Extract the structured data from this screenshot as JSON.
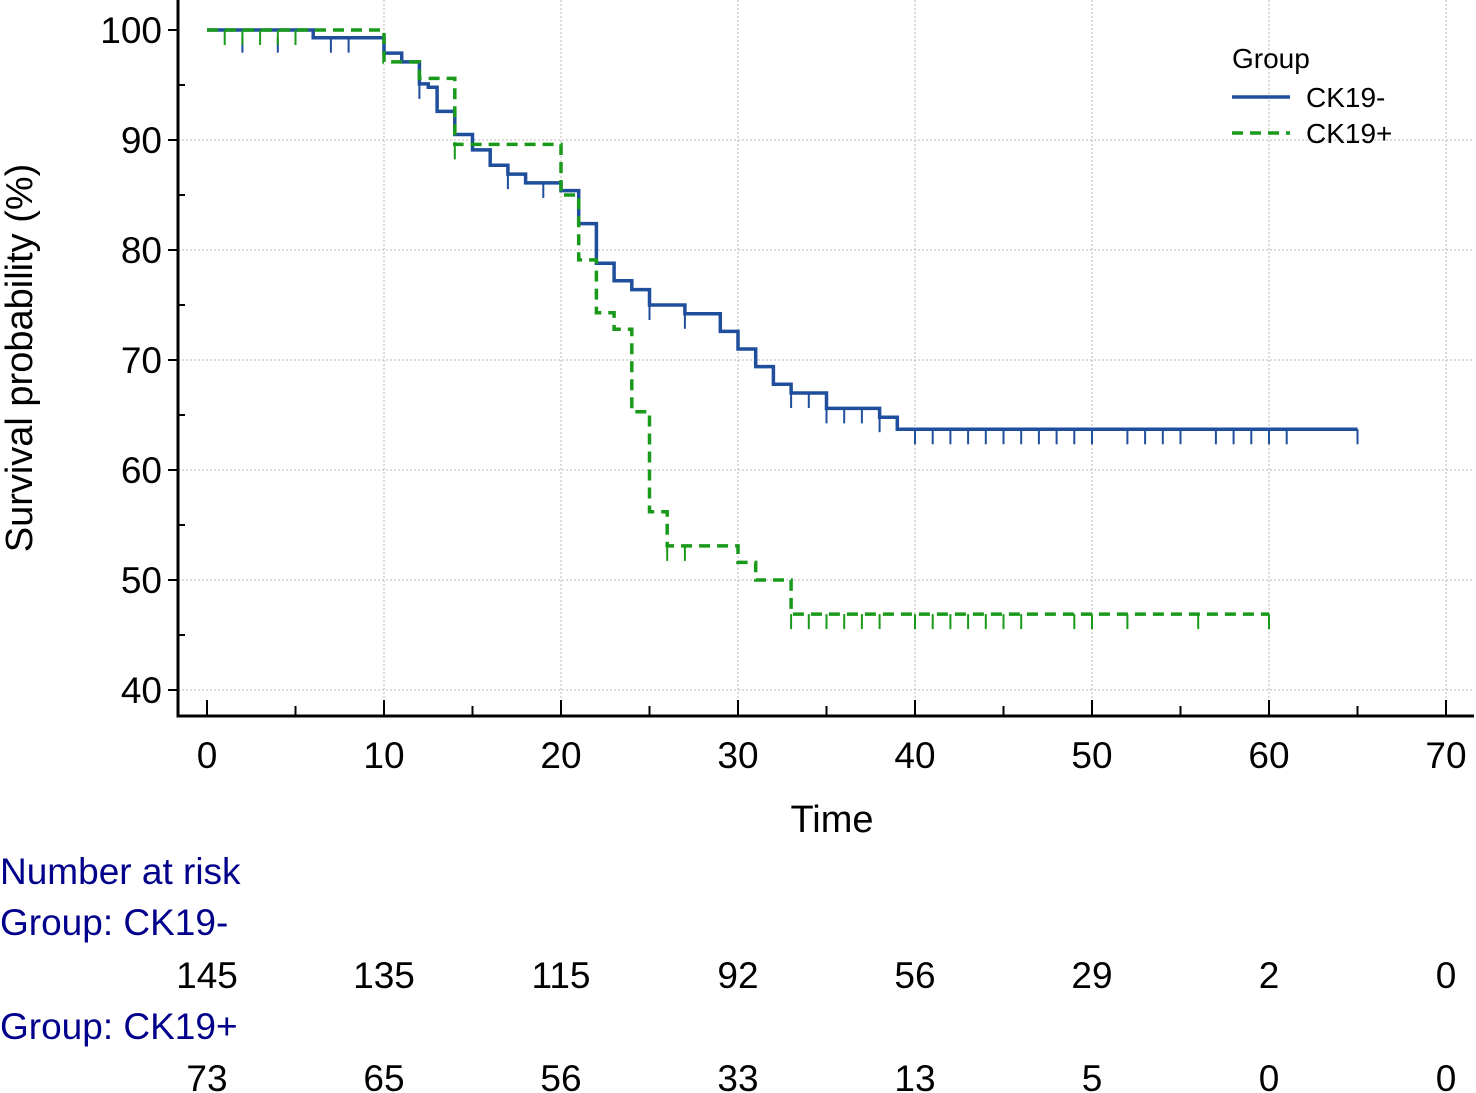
{
  "chart_data": {
    "type": "line",
    "subtype": "kaplan-meier",
    "xlabel": "Time",
    "ylabel": "Survival probability (%)",
    "xlim": [
      0,
      70
    ],
    "ylim": [
      40,
      100
    ],
    "xticks": [
      0,
      10,
      20,
      30,
      40,
      50,
      60,
      70
    ],
    "yticks": [
      40,
      50,
      60,
      70,
      80,
      90,
      100
    ],
    "grid": true,
    "legend": {
      "title": "Group",
      "position": "top-right",
      "entries": [
        {
          "label": "CK19-",
          "style": "solid"
        },
        {
          "label": "CK19+",
          "style": "dashed"
        }
      ]
    },
    "series": [
      {
        "name": "CK19-",
        "color": "#1f4e9c",
        "style": "solid",
        "steps": [
          [
            0,
            100
          ],
          [
            6,
            99.3
          ],
          [
            10,
            97.9
          ],
          [
            11,
            97.1
          ],
          [
            12,
            95.1
          ],
          [
            12.5,
            94.8
          ],
          [
            13,
            92.6
          ],
          [
            14,
            90.5
          ],
          [
            15,
            89.1
          ],
          [
            16,
            87.7
          ],
          [
            17,
            86.9
          ],
          [
            18,
            86.1
          ],
          [
            20,
            85.4
          ],
          [
            21,
            82.4
          ],
          [
            22,
            78.8
          ],
          [
            23,
            77.2
          ],
          [
            24,
            76.4
          ],
          [
            25,
            75
          ],
          [
            27,
            74.2
          ],
          [
            29,
            72.6
          ],
          [
            30,
            71
          ],
          [
            31,
            69.4
          ],
          [
            32,
            67.8
          ],
          [
            33,
            67
          ],
          [
            34,
            67
          ],
          [
            35,
            65.6
          ],
          [
            38,
            64.8
          ],
          [
            39,
            63.7
          ],
          [
            65,
            63.7
          ]
        ],
        "censored": [
          [
            2,
            99.3
          ],
          [
            4,
            99.3
          ],
          [
            7,
            99.3
          ],
          [
            8,
            99.3
          ],
          [
            12,
            95.1
          ],
          [
            17,
            86.9
          ],
          [
            19,
            86.1
          ],
          [
            21,
            85.4
          ],
          [
            25,
            75
          ],
          [
            27,
            74.2
          ],
          [
            33,
            67
          ],
          [
            34,
            67
          ],
          [
            35,
            65.6
          ],
          [
            36,
            65.6
          ],
          [
            37,
            65.6
          ],
          [
            38,
            64.8
          ],
          [
            40,
            63.7
          ],
          [
            41,
            63.7
          ],
          [
            42,
            63.7
          ],
          [
            43,
            63.7
          ],
          [
            44,
            63.7
          ],
          [
            45,
            63.7
          ],
          [
            46,
            63.7
          ],
          [
            47,
            63.7
          ],
          [
            48,
            63.7
          ],
          [
            49,
            63.7
          ],
          [
            50,
            63.7
          ],
          [
            52,
            63.7
          ],
          [
            53,
            63.7
          ],
          [
            54,
            63.7
          ],
          [
            55,
            63.7
          ],
          [
            57,
            63.7
          ],
          [
            58,
            63.7
          ],
          [
            59,
            63.7
          ],
          [
            60,
            63.7
          ],
          [
            61,
            63.7
          ],
          [
            65,
            63.7
          ]
        ]
      },
      {
        "name": "CK19+",
        "color": "#1a9a1a",
        "style": "dashed",
        "steps": [
          [
            0,
            100
          ],
          [
            10,
            97.1
          ],
          [
            12,
            95.6
          ],
          [
            14,
            89.6
          ],
          [
            20,
            88
          ],
          [
            20,
            85
          ],
          [
            21,
            79.1
          ],
          [
            22,
            74.3
          ],
          [
            23,
            72.8
          ],
          [
            24,
            65.3
          ],
          [
            25,
            56.2
          ],
          [
            26,
            53.1
          ],
          [
            30,
            51.6
          ],
          [
            31,
            50
          ],
          [
            33,
            46.9
          ],
          [
            60,
            46.9
          ]
        ],
        "censored": [
          [
            1,
            100
          ],
          [
            2,
            100
          ],
          [
            3,
            100
          ],
          [
            4,
            100
          ],
          [
            5,
            100
          ],
          [
            14,
            89.6
          ],
          [
            26,
            53.1
          ],
          [
            27,
            53.1
          ],
          [
            33,
            46.9
          ],
          [
            34,
            46.9
          ],
          [
            35,
            46.9
          ],
          [
            36,
            46.9
          ],
          [
            37,
            46.9
          ],
          [
            38,
            46.9
          ],
          [
            40,
            46.9
          ],
          [
            41,
            46.9
          ],
          [
            42,
            46.9
          ],
          [
            43,
            46.9
          ],
          [
            44,
            46.9
          ],
          [
            45,
            46.9
          ],
          [
            46,
            46.9
          ],
          [
            49,
            46.9
          ],
          [
            50,
            46.9
          ],
          [
            52,
            46.9
          ],
          [
            56,
            46.9
          ],
          [
            60,
            46.9
          ]
        ]
      }
    ],
    "number_at_risk": {
      "title": "Number at risk",
      "times": [
        0,
        10,
        20,
        30,
        40,
        50,
        60,
        70
      ],
      "groups": [
        {
          "label": "Group: CK19-",
          "counts": [
            "145",
            "135",
            "115",
            "92",
            "56",
            "29",
            "2",
            "0"
          ]
        },
        {
          "label": "Group: CK19+",
          "counts": [
            "73",
            "65",
            "56",
            "33",
            "13",
            "5",
            "0",
            "0"
          ]
        }
      ]
    },
    "risk_color": "#00008b"
  }
}
